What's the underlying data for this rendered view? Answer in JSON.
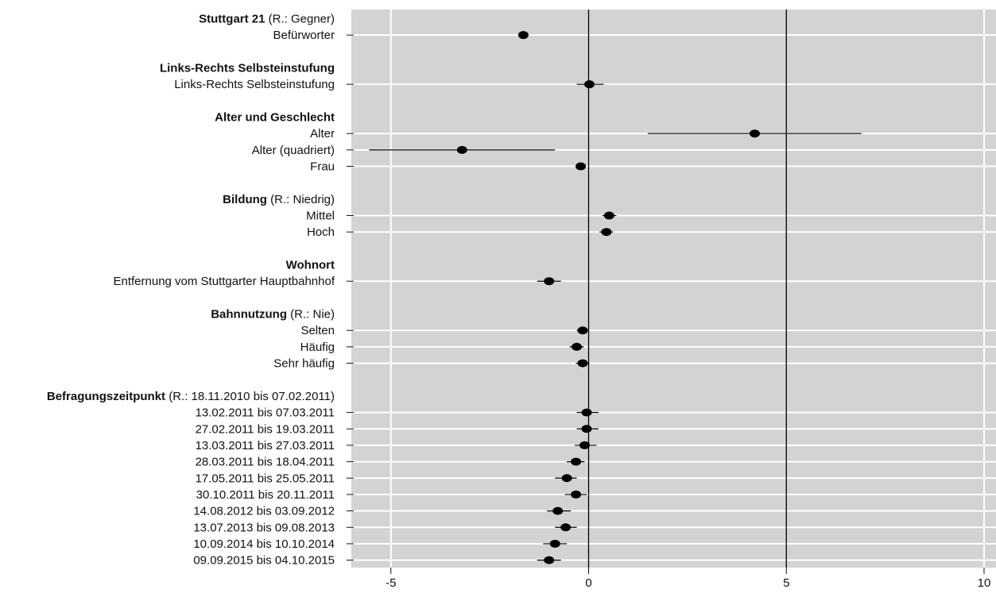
{
  "chart_data": {
    "type": "scatter",
    "subtype": "coefficient-plot-with-confidence-intervals",
    "xlim": [
      -6,
      10
    ],
    "xticks": [
      -5,
      0,
      5,
      10
    ],
    "grid": true,
    "reference_lines": [
      0,
      5
    ],
    "colors": {
      "panel": "#d3d3d3",
      "grid": "#ffffff",
      "point": "#000000",
      "ref_line": "#000000"
    },
    "groups": [
      {
        "header_bold": "Stuttgart 21",
        "header_note": " (R.: Gegner)",
        "rows": [
          {
            "label": "Befürworter",
            "estimate": -1.65,
            "ci": [
              -1.75,
              -1.55
            ]
          }
        ]
      },
      {
        "header_bold": "Links-Rechts Selbsteinstufung",
        "header_note": "",
        "rows": [
          {
            "label": "Links-Rechts Selbsteinstufung",
            "estimate": 0.02,
            "ci": [
              -0.3,
              0.38
            ]
          }
        ]
      },
      {
        "header_bold": "Alter und Geschlecht",
        "header_note": "",
        "rows": [
          {
            "label": "Alter",
            "estimate": 4.2,
            "ci": [
              1.5,
              6.9
            ]
          },
          {
            "label": "Alter (quadriert)",
            "estimate": -3.2,
            "ci": [
              -5.55,
              -0.85
            ]
          },
          {
            "label": "Frau",
            "estimate": -0.2,
            "ci": [
              -0.32,
              -0.08
            ]
          }
        ]
      },
      {
        "header_bold": "Bildung",
        "header_note": " (R.: Niedrig)",
        "rows": [
          {
            "label": "Mittel",
            "estimate": 0.52,
            "ci": [
              0.35,
              0.7
            ]
          },
          {
            "label": "Hoch",
            "estimate": 0.45,
            "ci": [
              0.28,
              0.62
            ]
          }
        ]
      },
      {
        "header_bold": "Wohnort",
        "header_note": "",
        "rows": [
          {
            "label": "Entfernung vom Stuttgarter Hauptbahnhof",
            "estimate": -1.0,
            "ci": [
              -1.3,
              -0.7
            ]
          }
        ]
      },
      {
        "header_bold": "Bahnnutzung",
        "header_note": " (R.: Nie)",
        "rows": [
          {
            "label": "Selten",
            "estimate": -0.15,
            "ci": [
              -0.3,
              0.0
            ]
          },
          {
            "label": "Häufig",
            "estimate": -0.3,
            "ci": [
              -0.48,
              -0.12
            ]
          },
          {
            "label": "Sehr häufig",
            "estimate": -0.15,
            "ci": [
              -0.32,
              0.02
            ]
          }
        ]
      },
      {
        "header_bold": "Befragungszeitpunkt",
        "header_note": " (R.: 18.11.2010 bis 07.02.2011)",
        "rows": [
          {
            "label": "13.02.2011 bis 07.03.2011",
            "estimate": -0.05,
            "ci": [
              -0.3,
              0.25
            ]
          },
          {
            "label": "27.02.2011 bis 19.03.2011",
            "estimate": -0.05,
            "ci": [
              -0.3,
              0.25
            ]
          },
          {
            "label": "13.03.2011 bis 27.03.2011",
            "estimate": -0.1,
            "ci": [
              -0.35,
              0.2
            ]
          },
          {
            "label": "28.03.2011 bis 18.04.2011",
            "estimate": -0.32,
            "ci": [
              -0.55,
              -0.1
            ]
          },
          {
            "label": "17.05.2011 bis 25.05.2011",
            "estimate": -0.55,
            "ci": [
              -0.85,
              -0.3
            ]
          },
          {
            "label": "30.10.2011 bis 20.11.2011",
            "estimate": -0.32,
            "ci": [
              -0.6,
              -0.05
            ]
          },
          {
            "label": "14.08.2012 bis 03.09.2012",
            "estimate": -0.78,
            "ci": [
              -1.05,
              -0.45
            ]
          },
          {
            "label": "13.07.2013 bis 09.08.2013",
            "estimate": -0.58,
            "ci": [
              -0.85,
              -0.3
            ]
          },
          {
            "label": "10.09.2014 bis 10.10.2014",
            "estimate": -0.85,
            "ci": [
              -1.15,
              -0.55
            ]
          },
          {
            "label": "09.09.2015 bis 04.10.2015",
            "estimate": -1.0,
            "ci": [
              -1.3,
              -0.7
            ]
          }
        ]
      }
    ]
  }
}
